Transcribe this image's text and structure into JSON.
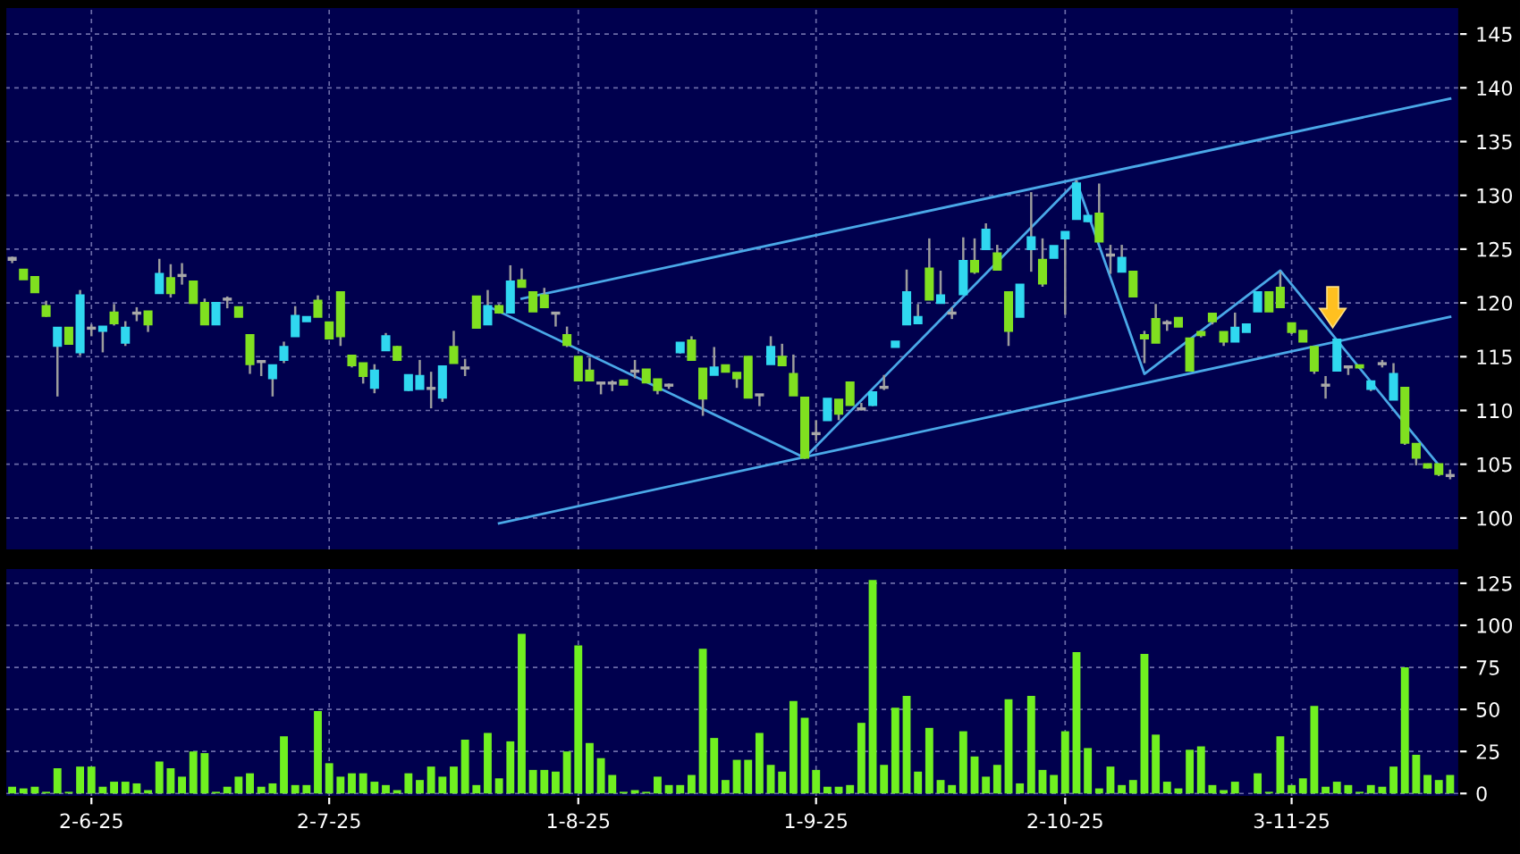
{
  "chart_data": [
    {
      "type": "candlestick",
      "categories": [
        null,
        null,
        null,
        null,
        null,
        null,
        null,
        null,
        null,
        null,
        null,
        null,
        null,
        null,
        null,
        null,
        null,
        null,
        null,
        null,
        null,
        null,
        null,
        null,
        null,
        null,
        null,
        null,
        null,
        null,
        null,
        null,
        null,
        null,
        null,
        null,
        null,
        null,
        null,
        null,
        null,
        null,
        null,
        null,
        null,
        null,
        null,
        null,
        null,
        null,
        null,
        null,
        null,
        null,
        null,
        null,
        null,
        null,
        null,
        null,
        null,
        null,
        null,
        null,
        null,
        null,
        null,
        null,
        null,
        null,
        null,
        null,
        null,
        null,
        null,
        null,
        null,
        null,
        null,
        null,
        null,
        null,
        null,
        null,
        null,
        null,
        null,
        null,
        null,
        null,
        null,
        null,
        null,
        null,
        null,
        null,
        null,
        null,
        null,
        null,
        null,
        null,
        null,
        null,
        null,
        null,
        null,
        null,
        null,
        null,
        null,
        null,
        null,
        null,
        null,
        null,
        null,
        null,
        null,
        null,
        null,
        null,
        null,
        null,
        null,
        null,
        null,
        null
      ],
      "ohlc": [
        [
          124.2,
          124.3,
          123.7,
          124.0
        ],
        [
          123.1,
          123.1,
          122.2,
          122.2
        ],
        [
          122.4,
          122.4,
          121.0,
          121.0
        ],
        [
          119.7,
          120.2,
          118.7,
          118.8
        ],
        [
          116.0,
          117.7,
          111.3,
          117.7
        ],
        [
          117.7,
          117.7,
          116.2,
          116.2
        ],
        [
          115.4,
          121.2,
          115.1,
          120.7
        ],
        [
          117.7,
          118.0,
          116.9,
          117.6
        ],
        [
          117.4,
          117.8,
          115.4,
          117.8
        ],
        [
          119.1,
          119.9,
          117.9,
          118.1
        ],
        [
          116.3,
          118.3,
          116.0,
          117.7
        ],
        [
          119.1,
          119.6,
          118.3,
          119.0
        ],
        [
          119.2,
          119.2,
          117.3,
          118.0
        ],
        [
          120.9,
          124.1,
          120.9,
          122.7
        ],
        [
          122.3,
          123.6,
          120.5,
          120.9
        ],
        [
          122.6,
          123.7,
          121.7,
          122.5
        ],
        [
          122.0,
          122.0,
          120.0,
          120.0
        ],
        [
          120.0,
          120.4,
          118.0,
          118.0
        ],
        [
          118.0,
          120.0,
          118.0,
          120.0
        ],
        [
          120.4,
          120.6,
          119.5,
          120.3
        ],
        [
          119.6,
          119.6,
          118.7,
          118.7
        ],
        [
          117.0,
          117.0,
          113.4,
          114.3
        ],
        [
          114.6,
          114.6,
          113.2,
          114.5
        ],
        [
          113.0,
          114.2,
          111.3,
          114.2
        ],
        [
          114.7,
          116.4,
          114.4,
          115.9
        ],
        [
          116.9,
          119.7,
          116.9,
          118.8
        ],
        [
          118.3,
          118.7,
          118.3,
          118.7
        ],
        [
          120.2,
          120.7,
          118.7,
          118.7
        ],
        [
          118.2,
          118.2,
          116.7,
          116.7
        ],
        [
          121.0,
          121.0,
          116.0,
          116.9
        ],
        [
          115.1,
          115.1,
          114.0,
          114.2
        ],
        [
          114.4,
          114.4,
          112.5,
          113.2
        ],
        [
          112.1,
          114.3,
          111.6,
          113.7
        ],
        [
          115.6,
          117.2,
          115.6,
          116.9
        ],
        [
          115.9,
          116.0,
          114.6,
          114.7
        ],
        [
          111.9,
          113.3,
          111.8,
          113.3
        ],
        [
          112.0,
          114.7,
          112.0,
          113.2
        ],
        [
          112.1,
          113.6,
          110.2,
          112.0
        ],
        [
          111.2,
          114.1,
          110.8,
          114.1
        ],
        [
          115.9,
          117.4,
          114.4,
          114.4
        ],
        [
          114.0,
          114.8,
          113.2,
          113.9
        ],
        [
          120.6,
          120.6,
          117.7,
          117.7
        ],
        [
          118.0,
          121.2,
          118.0,
          119.7
        ],
        [
          119.7,
          119.9,
          119.0,
          119.1
        ],
        [
          119.1,
          123.5,
          119.1,
          122.0
        ],
        [
          122.1,
          123.2,
          121.5,
          121.5
        ],
        [
          121.0,
          121.0,
          119.2,
          119.2
        ],
        [
          120.7,
          121.4,
          119.6,
          119.6
        ],
        [
          119.1,
          119.1,
          117.8,
          119.0
        ],
        [
          117.0,
          117.8,
          115.9,
          116.1
        ],
        [
          115.0,
          115.0,
          112.8,
          112.8
        ],
        [
          113.7,
          114.9,
          112.8,
          112.8
        ],
        [
          112.6,
          112.6,
          111.5,
          112.5
        ],
        [
          112.5,
          112.8,
          111.8,
          112.6
        ],
        [
          112.8,
          112.8,
          112.4,
          112.4
        ],
        [
          113.6,
          114.7,
          113.0,
          113.7
        ],
        [
          113.8,
          113.8,
          112.6,
          112.6
        ],
        [
          112.9,
          112.9,
          111.5,
          111.9
        ],
        [
          112.4,
          112.5,
          112.0,
          112.3
        ],
        [
          115.4,
          116.3,
          115.3,
          116.3
        ],
        [
          116.5,
          116.9,
          114.7,
          114.7
        ],
        [
          113.9,
          113.9,
          109.5,
          111.1
        ],
        [
          113.3,
          115.9,
          113.3,
          114.0
        ],
        [
          114.2,
          114.2,
          113.6,
          113.6
        ],
        [
          113.5,
          113.5,
          112.1,
          113.0
        ],
        [
          115.0,
          115.0,
          111.2,
          111.2
        ],
        [
          111.5,
          111.5,
          110.4,
          111.4
        ],
        [
          114.3,
          116.9,
          114.3,
          115.9
        ],
        [
          115.0,
          116.2,
          114.2,
          114.2
        ],
        [
          113.4,
          115.2,
          111.4,
          111.4
        ],
        [
          111.2,
          111.2,
          105.5,
          105.6
        ],
        [
          107.9,
          109.1,
          107.2,
          107.8
        ],
        [
          109.1,
          111.1,
          109.1,
          111.1
        ],
        [
          111.0,
          111.0,
          109.1,
          109.7
        ],
        [
          112.6,
          112.6,
          110.5,
          110.5
        ],
        [
          110.2,
          110.7,
          110.0,
          110.1
        ],
        [
          110.5,
          111.7,
          110.4,
          111.7
        ],
        [
          112.1,
          113.3,
          111.9,
          112.2
        ],
        [
          115.9,
          116.4,
          115.9,
          116.4
        ],
        [
          118.0,
          123.1,
          118.0,
          121.0
        ],
        [
          118.1,
          119.9,
          118.1,
          118.7
        ],
        [
          123.2,
          126.0,
          120.3,
          120.3
        ],
        [
          120.0,
          123.0,
          120.0,
          120.7
        ],
        [
          119.0,
          119.6,
          118.5,
          119.1
        ],
        [
          120.8,
          126.1,
          120.8,
          123.9
        ],
        [
          123.9,
          126.0,
          122.7,
          122.9
        ],
        [
          125.0,
          127.4,
          125.0,
          126.8
        ],
        [
          124.6,
          125.4,
          123.1,
          123.1
        ],
        [
          121.0,
          121.0,
          116.0,
          117.4
        ],
        [
          118.7,
          121.7,
          118.7,
          121.7
        ],
        [
          125.0,
          130.3,
          122.9,
          126.1
        ],
        [
          124.0,
          126.0,
          121.5,
          121.8
        ],
        [
          124.2,
          125.3,
          124.2,
          125.3
        ],
        [
          126.0,
          126.6,
          118.9,
          126.6
        ],
        [
          127.8,
          131.4,
          127.8,
          131.1
        ],
        [
          127.6,
          128.1,
          127.5,
          128.1
        ],
        [
          128.3,
          131.1,
          125.7,
          125.7
        ],
        [
          124.5,
          125.4,
          122.7,
          124.4
        ],
        [
          122.9,
          125.4,
          122.9,
          124.2
        ],
        [
          122.9,
          122.9,
          120.6,
          120.6
        ],
        [
          117.0,
          117.4,
          114.4,
          116.7
        ],
        [
          118.5,
          119.9,
          116.3,
          116.3
        ],
        [
          118.2,
          118.4,
          117.4,
          118.1
        ],
        [
          118.6,
          118.6,
          117.8,
          117.8
        ],
        [
          116.7,
          116.7,
          113.7,
          113.7
        ],
        [
          117.3,
          117.4,
          116.8,
          117.0
        ],
        [
          119.0,
          119.0,
          118.0,
          118.3
        ],
        [
          117.3,
          117.3,
          116.0,
          116.4
        ],
        [
          116.4,
          119.1,
          116.4,
          117.7
        ],
        [
          117.3,
          118.0,
          117.3,
          118.0
        ],
        [
          119.2,
          121.0,
          119.2,
          121.0
        ],
        [
          121.0,
          121.0,
          119.2,
          119.2
        ],
        [
          121.4,
          122.9,
          119.6,
          119.6
        ],
        [
          118.1,
          118.1,
          117.1,
          117.3
        ],
        [
          117.4,
          117.4,
          116.4,
          116.4
        ],
        [
          115.9,
          115.9,
          113.4,
          113.7
        ],
        [
          112.4,
          113.2,
          111.1,
          112.3
        ],
        [
          113.7,
          116.6,
          113.7,
          116.6
        ],
        [
          114.1,
          114.1,
          113.3,
          114.0
        ],
        [
          114.2,
          114.2,
          113.9,
          114.0
        ],
        [
          112.0,
          112.7,
          111.8,
          112.7
        ],
        [
          114.4,
          114.7,
          114.0,
          114.3
        ],
        [
          111.0,
          114.4,
          111.0,
          113.4
        ],
        [
          112.1,
          112.1,
          106.8,
          107.0
        ],
        [
          106.9,
          106.9,
          104.9,
          105.6
        ],
        [
          105.0,
          105.0,
          104.6,
          104.7
        ],
        [
          105.0,
          105.0,
          103.9,
          104.1
        ],
        [
          104.0,
          104.5,
          103.6,
          103.9
        ]
      ],
      "colors": [
        "#a8a8a8",
        "#80e020",
        "#80e020",
        "#80e020",
        "#30d8f0",
        "#80e020",
        "#30d8f0",
        "#a8a8a8",
        "#30d8f0",
        "#80e020",
        "#30d8f0",
        "#a8a8a8",
        "#80e020",
        "#30d8f0",
        "#80e020",
        "#a8a8a8",
        "#80e020",
        "#80e020",
        "#30d8f0",
        "#a8a8a8",
        "#80e020",
        "#80e020",
        "#a8a8a8",
        "#30d8f0",
        "#30d8f0",
        "#30d8f0",
        "#30d8f0",
        "#80e020",
        "#80e020",
        "#80e020",
        "#80e020",
        "#80e020",
        "#30d8f0",
        "#30d8f0",
        "#80e020",
        "#30d8f0",
        "#30d8f0",
        "#a8a8a8",
        "#30d8f0",
        "#80e020",
        "#a8a8a8",
        "#80e020",
        "#30d8f0",
        "#80e020",
        "#30d8f0",
        "#80e020",
        "#80e020",
        "#80e020",
        "#a8a8a8",
        "#80e020",
        "#80e020",
        "#80e020",
        "#a8a8a8",
        "#a8a8a8",
        "#80e020",
        "#a8a8a8",
        "#80e020",
        "#80e020",
        "#a8a8a8",
        "#30d8f0",
        "#80e020",
        "#80e020",
        "#30d8f0",
        "#80e020",
        "#80e020",
        "#80e020",
        "#a8a8a8",
        "#30d8f0",
        "#80e020",
        "#80e020",
        "#80e020",
        "#a8a8a8",
        "#30d8f0",
        "#80e020",
        "#80e020",
        "#a8a8a8",
        "#30d8f0",
        "#a8a8a8",
        "#30d8f0",
        "#30d8f0",
        "#30d8f0",
        "#80e020",
        "#30d8f0",
        "#a8a8a8",
        "#30d8f0",
        "#80e020",
        "#30d8f0",
        "#80e020",
        "#80e020",
        "#30d8f0",
        "#30d8f0",
        "#80e020",
        "#30d8f0",
        "#30d8f0",
        "#30d8f0",
        "#30d8f0",
        "#80e020",
        "#a8a8a8",
        "#30d8f0",
        "#80e020",
        "#80e020",
        "#80e020",
        "#a8a8a8",
        "#80e020",
        "#80e020",
        "#80e020",
        "#80e020",
        "#80e020",
        "#30d8f0",
        "#30d8f0",
        "#30d8f0",
        "#80e020",
        "#80e020",
        "#80e020",
        "#80e020",
        "#80e020",
        "#a8a8a8",
        "#30d8f0",
        "#a8a8a8",
        "#80e020",
        "#30d8f0",
        "#a8a8a8",
        "#30d8f0",
        "#80e020",
        "#80e020",
        "#80e020",
        "#80e020",
        "#a8a8a8"
      ],
      "series": [
        {
          "type": "line",
          "color": "#4aa8e8",
          "values": [
            null,
            null,
            null,
            null,
            null,
            null,
            null,
            null,
            null,
            null,
            null,
            null,
            null,
            null,
            null,
            null,
            null,
            null,
            null,
            null,
            null,
            null,
            null,
            null,
            null,
            null,
            null,
            null,
            null,
            null,
            null,
            null,
            null,
            null,
            null,
            null,
            null,
            null,
            null,
            null,
            null,
            null,
            null,
            null,
            null,
            120.4,
            null,
            null,
            null,
            null,
            null,
            null,
            null,
            null,
            null,
            null,
            null,
            null,
            null,
            null,
            null,
            null,
            null,
            null,
            null,
            null,
            null,
            null,
            null,
            null,
            null,
            null,
            null,
            null,
            null,
            null,
            null,
            null,
            null,
            null,
            null,
            null,
            null,
            null,
            null,
            null,
            null,
            null,
            null,
            null,
            null,
            null,
            null,
            null,
            null,
            null,
            null,
            null,
            null,
            null,
            null,
            null,
            null,
            null,
            null,
            null,
            null,
            null,
            null,
            null,
            null,
            null,
            null,
            null,
            null,
            null,
            null,
            null,
            null,
            null,
            null,
            null,
            null,
            null,
            null,
            null,
            null,
            139.0
          ]
        },
        {
          "type": "line",
          "color": "#4aa8e8",
          "values": [
            null,
            null,
            null,
            null,
            null,
            null,
            null,
            null,
            null,
            null,
            null,
            null,
            null,
            null,
            null,
            null,
            null,
            null,
            null,
            null,
            null,
            null,
            null,
            null,
            null,
            null,
            null,
            null,
            null,
            null,
            null,
            null,
            null,
            null,
            null,
            null,
            null,
            null,
            null,
            null,
            null,
            null,
            null,
            99.5,
            null,
            null,
            null,
            null,
            null,
            null,
            null,
            null,
            null,
            null,
            null,
            null,
            null,
            null,
            null,
            null,
            null,
            null,
            null,
            null,
            null,
            null,
            null,
            null,
            null,
            null,
            null,
            null,
            null,
            null,
            null,
            null,
            null,
            null,
            null,
            null,
            null,
            null,
            null,
            null,
            null,
            null,
            null,
            null,
            null,
            null,
            null,
            null,
            null,
            null,
            null,
            null,
            null,
            null,
            null,
            null,
            null,
            null,
            null,
            null,
            null,
            null,
            null,
            null,
            null,
            null,
            null,
            null,
            null,
            null,
            null,
            null,
            null,
            null,
            null,
            null,
            null,
            null,
            null,
            null,
            null,
            null,
            null,
            118.7
          ]
        },
        {
          "type": "line",
          "color": "#4aa8e8",
          "values": [
            null,
            null,
            null,
            null,
            null,
            null,
            null,
            null,
            null,
            null,
            null,
            null,
            null,
            null,
            null,
            null,
            null,
            null,
            null,
            null,
            null,
            null,
            null,
            null,
            null,
            null,
            null,
            null,
            null,
            null,
            null,
            null,
            null,
            null,
            null,
            null,
            null,
            null,
            null,
            null,
            null,
            null,
            119.7,
            null,
            null,
            null,
            null,
            null,
            null,
            null,
            null,
            null,
            null,
            null,
            null,
            null,
            null,
            null,
            null,
            null,
            null,
            null,
            null,
            null,
            null,
            null,
            null,
            null,
            null,
            null,
            105.6,
            null,
            null,
            null,
            null,
            null,
            null,
            null,
            null,
            null,
            null,
            null,
            null,
            null,
            null,
            null,
            null,
            null,
            null,
            null,
            null,
            null,
            null,
            null,
            131.3,
            null,
            null,
            null,
            null,
            null,
            113.4,
            null,
            null,
            null,
            null,
            null,
            null,
            null,
            null,
            null,
            null,
            null,
            123.0,
            null,
            null,
            null,
            null,
            null,
            null,
            null,
            null,
            null,
            null,
            null,
            null,
            null,
            104.9,
            null
          ]
        }
      ],
      "ylim": [
        97,
        147.5
      ],
      "yticks": [
        100,
        105,
        110,
        115,
        120,
        125,
        130,
        135,
        140,
        145
      ],
      "grid": true,
      "tick_labels": "y"
    },
    {
      "type": "bar",
      "categories": [
        null,
        null,
        null,
        null,
        null,
        null,
        null,
        "2-6-25",
        null,
        null,
        null,
        null,
        null,
        null,
        null,
        null,
        null,
        null,
        null,
        null,
        null,
        null,
        null,
        null,
        null,
        null,
        null,
        null,
        "2-7-25",
        null,
        null,
        null,
        null,
        null,
        null,
        null,
        null,
        null,
        null,
        null,
        null,
        null,
        null,
        null,
        null,
        null,
        null,
        null,
        null,
        null,
        "1-8-25",
        null,
        null,
        null,
        null,
        null,
        null,
        null,
        null,
        null,
        null,
        null,
        null,
        null,
        null,
        null,
        null,
        null,
        null,
        null,
        null,
        "1-9-25",
        null,
        null,
        null,
        null,
        null,
        null,
        null,
        null,
        null,
        null,
        null,
        null,
        null,
        null,
        null,
        null,
        null,
        null,
        null,
        null,
        null,
        "2-10-25",
        null,
        null,
        null,
        null,
        null,
        null,
        null,
        null,
        null,
        null,
        null,
        null,
        null,
        null,
        null,
        null,
        null,
        null,
        null,
        "3-11-25",
        null,
        null,
        null,
        null,
        null,
        null,
        null,
        null,
        null,
        null,
        null,
        null,
        null,
        null
      ],
      "values": [
        4,
        3,
        4,
        1,
        15,
        1,
        16,
        16,
        4,
        7,
        7,
        6,
        2,
        19,
        15,
        10,
        25,
        24,
        1,
        4,
        10,
        12,
        4,
        6,
        34,
        5,
        5,
        49,
        18,
        10,
        12,
        12,
        7,
        5,
        2,
        12,
        8,
        16,
        10,
        16,
        32,
        5,
        36,
        9,
        31,
        95,
        14,
        14,
        13,
        25,
        88,
        30,
        21,
        11,
        1,
        2,
        1,
        10,
        5,
        5,
        11,
        86,
        33,
        8,
        20,
        20,
        36,
        17,
        13,
        55,
        45,
        14,
        4,
        4,
        5,
        42,
        127,
        17,
        51,
        58,
        13,
        39,
        8,
        5,
        37,
        22,
        10,
        17,
        56,
        6,
        58,
        14,
        11,
        37,
        84,
        27,
        3,
        16,
        5,
        8,
        83,
        35,
        7,
        3,
        26,
        28,
        5,
        2,
        7,
        0,
        12,
        1,
        34,
        5,
        9,
        52,
        4,
        7,
        5,
        1,
        5,
        4,
        16,
        75,
        23,
        11,
        8,
        11
      ],
      "color": "#70f020",
      "ylim": [
        -2,
        134
      ],
      "yticks": [
        0,
        25,
        50,
        75,
        100,
        125
      ],
      "grid": true
    }
  ]
}
